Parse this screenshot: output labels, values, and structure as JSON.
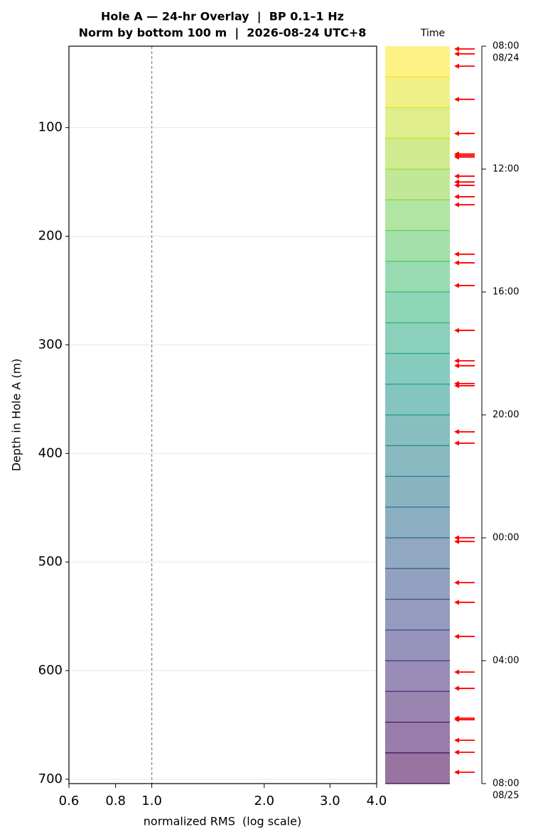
{
  "chart_data": {
    "type": "overlay",
    "title": "Hole A — 24-hr Overlay  |  BP 0.1–1 Hz",
    "subtitle": "Norm by bottom 100 m  |  2026-08-24 UTC+8",
    "x_label": "normalized RMS  (log scale)",
    "y_label": "Depth in Hole A (m)",
    "x_log": true,
    "xlim": [
      0.6,
      4.0
    ],
    "xticks": [
      0.6,
      0.8,
      {
        "value": 1,
        "label": "1.0"
      },
      {
        "value": 2,
        "label": "2.0"
      },
      {
        "value": 3,
        "label": "3.0"
      },
      {
        "value": 4,
        "label": "4.0"
      }
    ],
    "ylim": [
      704,
      25
    ],
    "yticks": [
      100,
      200,
      300,
      400,
      500,
      600,
      700
    ],
    "grid": true,
    "reference_x": 1,
    "reference_color": "#808080",
    "colorbar": {
      "label": "Time",
      "clim": [
        0,
        24
      ],
      "bands": 24,
      "colormap": [
        "#fde725",
        "#b5de2b",
        "#6ece58",
        "#35b779",
        "#1f9e89",
        "#26828e",
        "#31688e",
        "#3e4989",
        "#482878",
        "#440154"
      ],
      "alpha": 0.55,
      "ticks": [
        {
          "value": 0,
          "label": "08:00",
          "date": "08/24"
        },
        {
          "value": 4,
          "label": "12:00"
        },
        {
          "value": 8,
          "label": "16:00"
        },
        {
          "value": 12,
          "label": "20:00"
        },
        {
          "value": 16,
          "label": "00:00"
        },
        {
          "value": 20,
          "label": "04:00"
        },
        {
          "value": 24,
          "label": "08:00",
          "date": "08/25"
        }
      ]
    },
    "markers": {
      "color": "#ff0000",
      "values": [
        0.09,
        0.25,
        0.65,
        1.73,
        2.84,
        3.51,
        3.56,
        3.61,
        4.23,
        4.42,
        4.53,
        4.9,
        5.16,
        6.77,
        7.05,
        7.79,
        9.25,
        10.24,
        10.4,
        10.98,
        11.05,
        12.55,
        12.92,
        16.0,
        16.12,
        17.46,
        18.1,
        19.21,
        20.37,
        20.9,
        21.87,
        21.92,
        22.59,
        22.98,
        23.63
      ]
    }
  }
}
